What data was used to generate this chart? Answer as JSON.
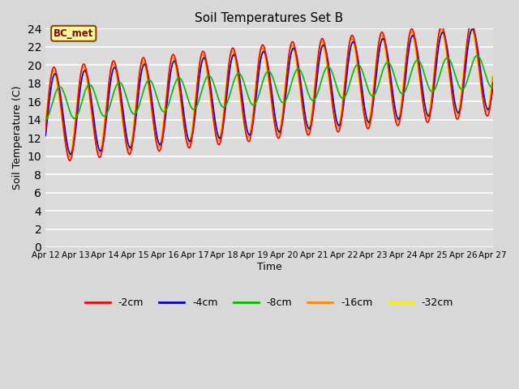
{
  "title": "Soil Temperatures Set B",
  "xlabel": "Time",
  "ylabel": "Soil Temperature (C)",
  "ylim": [
    0,
    24
  ],
  "yticks": [
    0,
    2,
    4,
    6,
    8,
    10,
    12,
    14,
    16,
    18,
    20,
    22,
    24
  ],
  "background_color": "#d8d8d8",
  "plot_bg_color": "#dcdcdc",
  "annotation_text": "BC_met",
  "annotation_bg": "#ffff99",
  "annotation_border": "#8b4513",
  "annotation_text_color": "#8b0000",
  "colors": {
    "-2cm": "#ff0000",
    "-4cm": "#0000cc",
    "-8cm": "#00bb00",
    "-16cm": "#ff8800",
    "-32cm": "#ffee00"
  },
  "linewidth": 1.2,
  "date_labels": [
    "Apr 12",
    "Apr 13",
    "Apr 14",
    "Apr 15",
    "Apr 16",
    "Apr 17",
    "Apr 18",
    "Apr 19",
    "Apr 20",
    "Apr 21",
    "Apr 22",
    "Apr 23",
    "Apr 24",
    "Apr 25",
    "Apr 26",
    "Apr 27"
  ],
  "n_points": 720
}
